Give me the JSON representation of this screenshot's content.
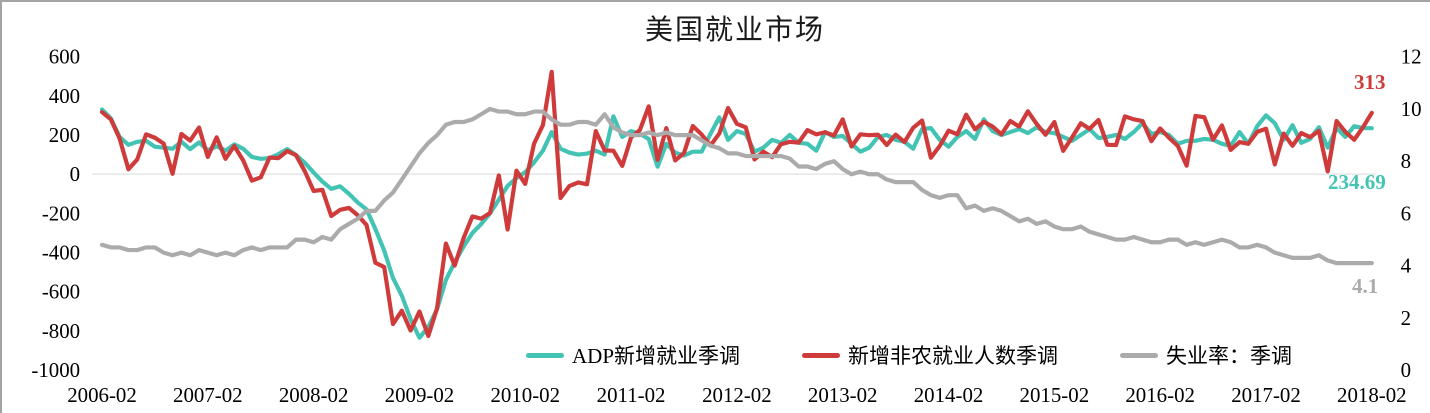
{
  "colors": {
    "adp": "#43c3b4",
    "nonfarm": "#cf3b3b",
    "unemployment": "#ababab",
    "gridline": "#d9d9d9",
    "axis_text": "#000000",
    "frame_border": "#a3a3a3"
  },
  "chart_data": {
    "type": "line",
    "title": "美国就业市场",
    "freq": "monthly",
    "x_start": "2006-02",
    "x_end": "2018-02",
    "x_tick_labels": [
      "2006-02",
      "2007-02",
      "2008-02",
      "2009-02",
      "2010-02",
      "2011-02",
      "2012-02",
      "2013-02",
      "2014-02",
      "2015-02",
      "2016-02",
      "2017-02",
      "2018-02"
    ],
    "left_axis": {
      "label": "",
      "min": -1000,
      "max": 600,
      "ticks": [
        600,
        400,
        200,
        0,
        -200,
        -400,
        -600,
        -800,
        -1000
      ]
    },
    "right_axis": {
      "label": "",
      "min": 0,
      "max": 12,
      "ticks": [
        12,
        10,
        8,
        6,
        4,
        2,
        0
      ]
    },
    "grid": "horizontal zero line only",
    "legend_position": "bottom-center",
    "series": [
      {
        "name": "ADP新增就业季调",
        "axis": "left",
        "color": "#43c3b4",
        "end_label": "234.69",
        "values": [
          330,
          285,
          190,
          150,
          165,
          170,
          140,
          135,
          130,
          165,
          128,
          162,
          122,
          142,
          120,
          152,
          130,
          88,
          78,
          82,
          102,
          128,
          98,
          58,
          8,
          -38,
          -75,
          -62,
          -100,
          -145,
          -180,
          -280,
          -390,
          -530,
          -620,
          -740,
          -835,
          -780,
          -690,
          -540,
          -450,
          -370,
          -300,
          -255,
          -200,
          -130,
          -60,
          -20,
          10,
          60,
          120,
          215,
          130,
          110,
          100,
          105,
          120,
          100,
          295,
          190,
          220,
          205,
          180,
          38,
          155,
          110,
          95,
          115,
          115,
          205,
          290,
          175,
          220,
          205,
          115,
          135,
          175,
          160,
          200,
          160,
          155,
          120,
          215,
          190,
          195,
          155,
          115,
          135,
          190,
          200,
          175,
          165,
          130,
          230,
          235,
          175,
          140,
          190,
          220,
          180,
          280,
          220,
          200,
          215,
          230,
          210,
          240,
          215,
          210,
          190,
          170,
          200,
          230,
          185,
          190,
          200,
          180,
          215,
          260,
          205,
          215,
          200,
          155,
          170,
          170,
          180,
          175,
          155,
          145,
          215,
          155,
          245,
          300,
          260,
          175,
          250,
          160,
          180,
          240,
          135,
          235,
          190,
          245,
          235,
          234.69
        ]
      },
      {
        "name": "新增非农就业人数季调",
        "axis": "left",
        "color": "#cf3b3b",
        "end_label": "313",
        "values": [
          317,
          280,
          182,
          25,
          75,
          203,
          186,
          156,
          2,
          205,
          171,
          238,
          88,
          188,
          78,
          144,
          71,
          -33,
          -16,
          85,
          82,
          118,
          97,
          15,
          -86,
          -80,
          -214,
          -182,
          -172,
          -210,
          -259,
          -452,
          -474,
          -765,
          -697,
          -798,
          -701,
          -826,
          -684,
          -354,
          -467,
          -327,
          -216,
          -227,
          -198,
          -6,
          -283,
          18,
          -50,
          156,
          251,
          522,
          -122,
          -61,
          -42,
          -52,
          220,
          121,
          120,
          42,
          188,
          225,
          346,
          73,
          235,
          70,
          107,
          246,
          202,
          146,
          207,
          338,
          257,
          239,
          75,
          115,
          87,
          153,
          165,
          161,
          225,
          203,
          214,
          197,
          280,
          141,
          203,
          199,
          201,
          149,
          202,
          164,
          237,
          274,
          84,
          144,
          222,
          203,
          304,
          229,
          267,
          243,
          203,
          271,
          243,
          321,
          256,
          201,
          266,
          119,
          187,
          260,
          231,
          277,
          150,
          149,
          295,
          280,
          271,
          168,
          233,
          186,
          144,
          43,
          297,
          291,
          176,
          249,
          124,
          164,
          155,
          216,
          232,
          50,
          207,
          145,
          210,
          189,
          221,
          14,
          271,
          216,
          175,
          239,
          313
        ]
      },
      {
        "name": "失业率：季调",
        "axis": "right",
        "color": "#ababab",
        "end_label": "4.1",
        "values": [
          4.8,
          4.7,
          4.7,
          4.6,
          4.6,
          4.7,
          4.7,
          4.5,
          4.4,
          4.5,
          4.4,
          4.6,
          4.5,
          4.4,
          4.5,
          4.4,
          4.6,
          4.7,
          4.6,
          4.7,
          4.7,
          4.7,
          5.0,
          5.0,
          4.9,
          5.1,
          5.0,
          5.4,
          5.6,
          5.8,
          6.1,
          6.1,
          6.5,
          6.8,
          7.3,
          7.8,
          8.3,
          8.7,
          9.0,
          9.4,
          9.5,
          9.5,
          9.6,
          9.8,
          10.0,
          9.9,
          9.9,
          9.8,
          9.8,
          9.9,
          9.9,
          9.6,
          9.4,
          9.4,
          9.5,
          9.5,
          9.4,
          9.8,
          9.3,
          9.1,
          9.0,
          9.0,
          9.1,
          9.0,
          9.1,
          9.0,
          9.0,
          9.0,
          8.8,
          8.6,
          8.5,
          8.3,
          8.3,
          8.2,
          8.2,
          8.2,
          8.2,
          8.2,
          8.1,
          7.8,
          7.8,
          7.7,
          7.9,
          8.0,
          7.7,
          7.5,
          7.6,
          7.5,
          7.5,
          7.3,
          7.2,
          7.2,
          7.2,
          6.9,
          6.7,
          6.6,
          6.7,
          6.7,
          6.2,
          6.3,
          6.1,
          6.2,
          6.1,
          5.9,
          5.7,
          5.8,
          5.6,
          5.7,
          5.5,
          5.4,
          5.4,
          5.5,
          5.3,
          5.2,
          5.1,
          5.0,
          5.0,
          5.1,
          5.0,
          4.9,
          4.9,
          5.0,
          5.0,
          4.8,
          4.9,
          4.8,
          4.9,
          5.0,
          4.9,
          4.7,
          4.7,
          4.8,
          4.7,
          4.5,
          4.4,
          4.3,
          4.3,
          4.3,
          4.4,
          4.2,
          4.1,
          4.1,
          4.1,
          4.1,
          4.1
        ]
      }
    ]
  }
}
